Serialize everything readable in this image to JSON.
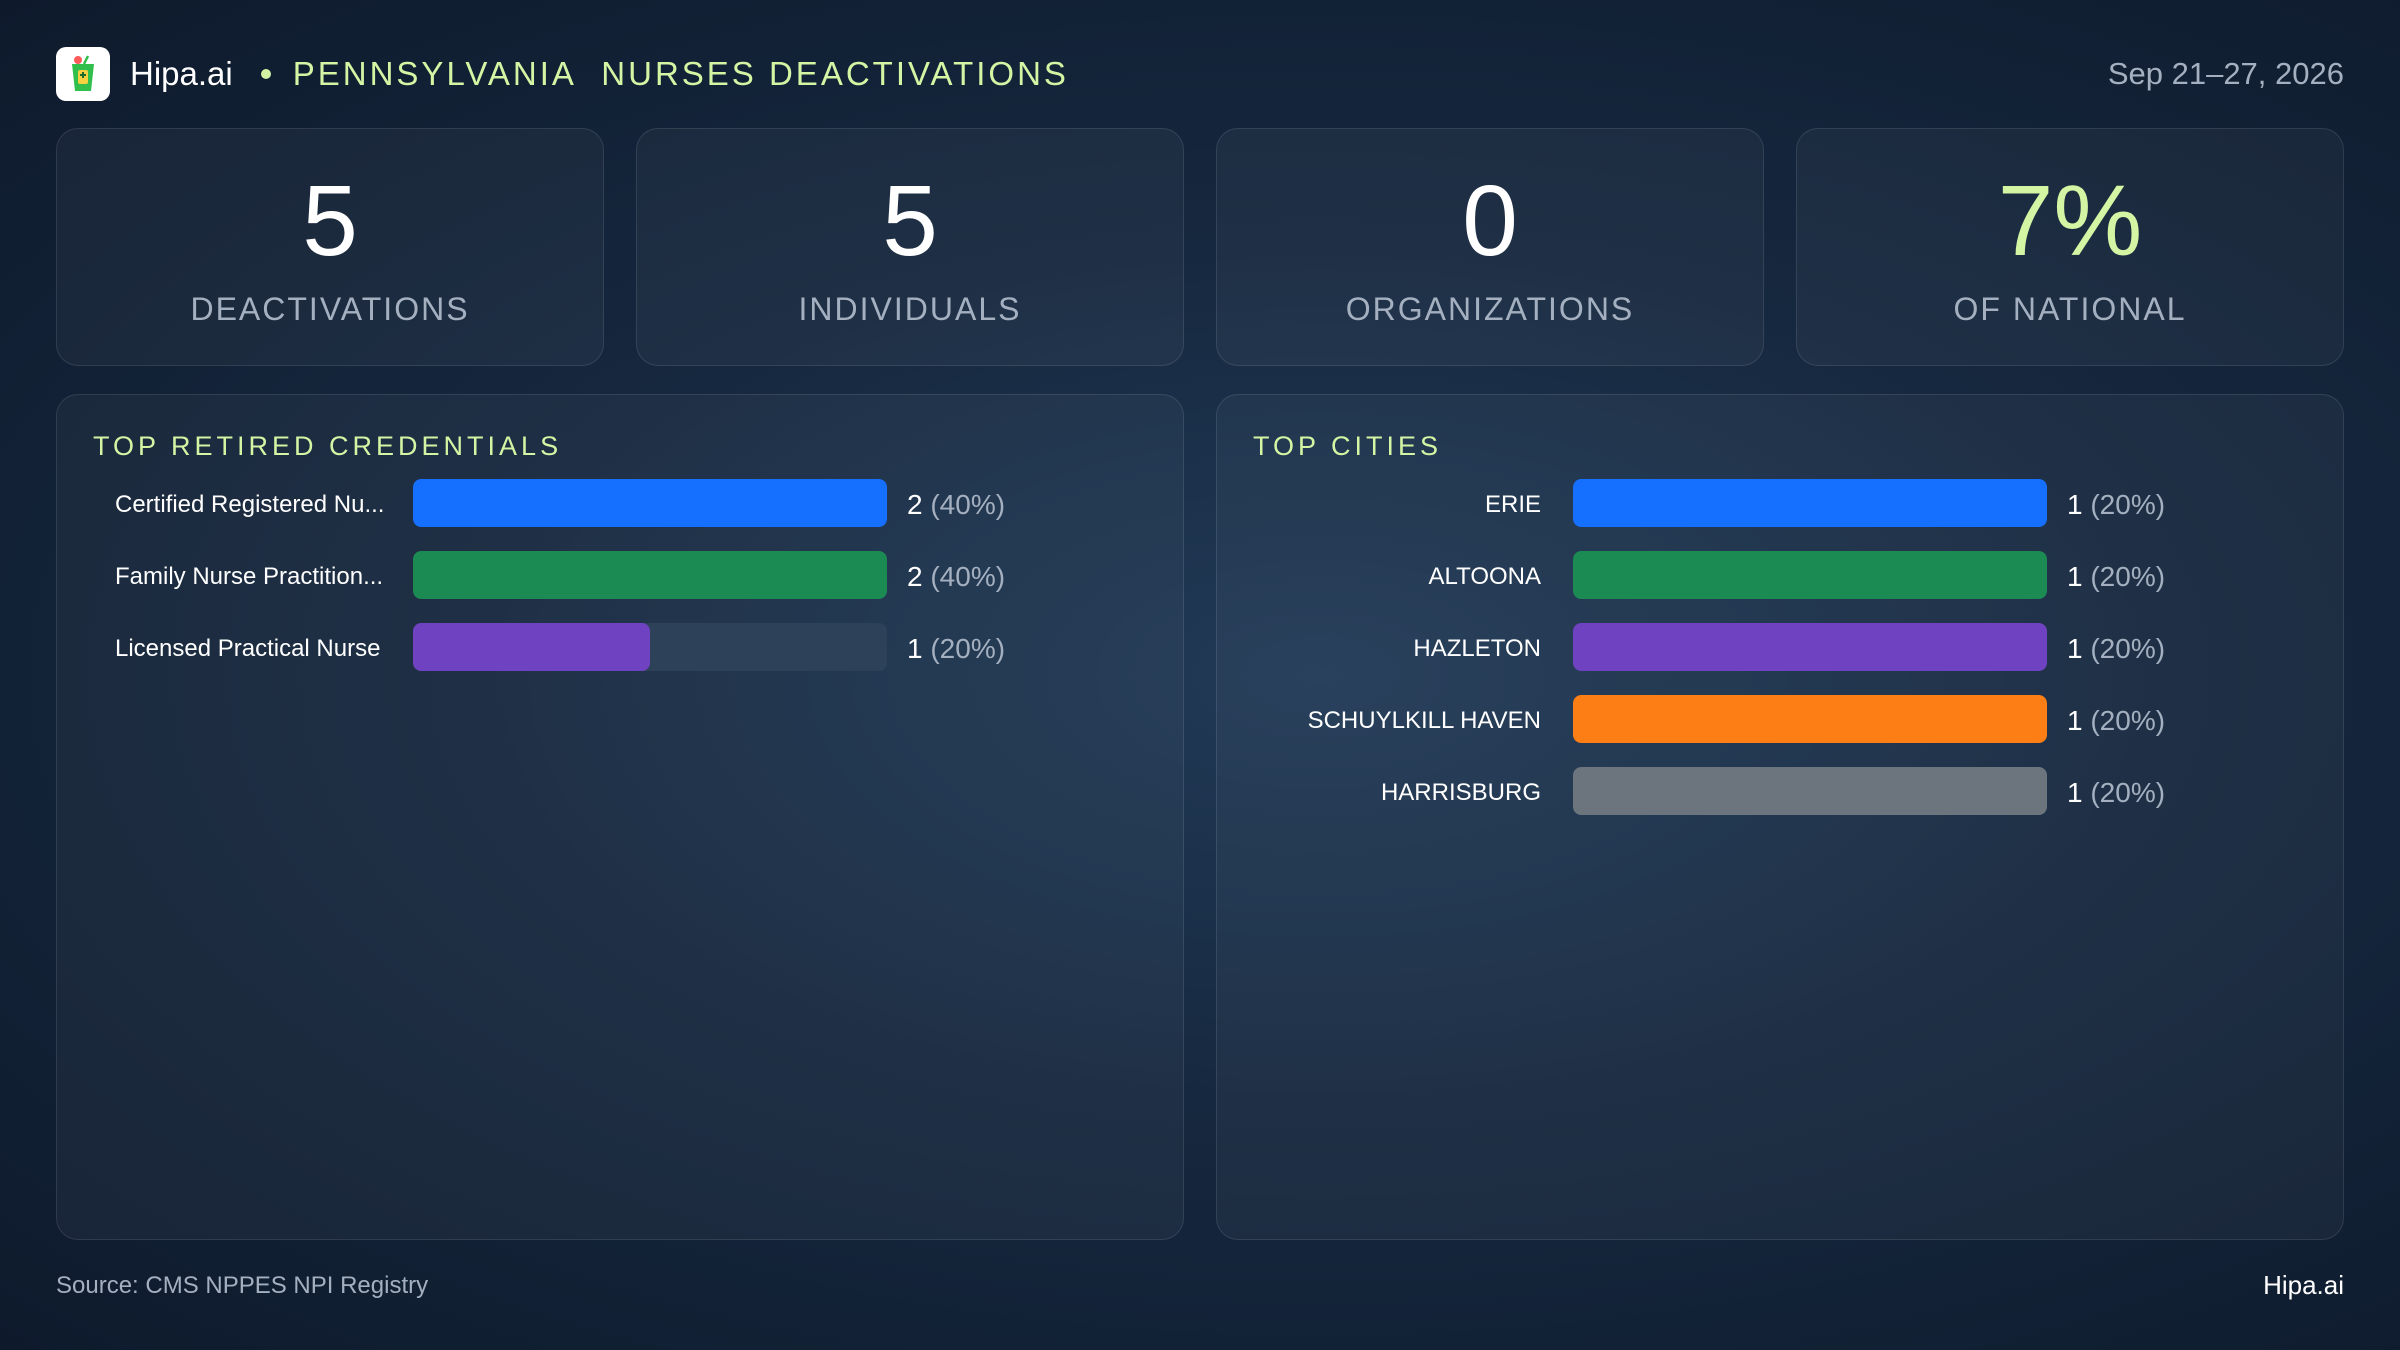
{
  "header": {
    "brand": "Hipa.ai",
    "state": "PENNSYLVANIA",
    "subtitle": "NURSES DEACTIVATIONS",
    "date_range": "Sep 21–27, 2026"
  },
  "kpis": [
    {
      "value": "5",
      "label": "DEACTIVATIONS"
    },
    {
      "value": "5",
      "label": "INDIVIDUALS"
    },
    {
      "value": "0",
      "label": "ORGANIZATIONS"
    },
    {
      "value": "7%",
      "label": "OF NATIONAL"
    }
  ],
  "colors": {
    "accent": "#d4f5a4",
    "blue": "#1670ff",
    "green": "#1b8a53",
    "purple": "#6f42c1",
    "orange": "#fd7e14",
    "gray": "#6c757d",
    "track": "#2d4259"
  },
  "chart_data": [
    {
      "type": "bar",
      "title": "TOP RETIRED CREDENTIALS",
      "orientation": "horizontal",
      "categories": [
        "Certified Registered Nu...",
        "Family Nurse Practition...",
        "Licensed Practical Nurse"
      ],
      "values": [
        2,
        2,
        1
      ],
      "percent_labels": [
        "(40%)",
        "(40%)",
        "(20%)"
      ],
      "colors": [
        "#1670ff",
        "#1b8a53",
        "#6f42c1"
      ],
      "xlim": [
        0,
        2
      ]
    },
    {
      "type": "bar",
      "title": "TOP CITIES",
      "orientation": "horizontal",
      "categories": [
        "ERIE",
        "ALTOONA",
        "HAZLETON",
        "SCHUYLKILL HAVEN",
        "HARRISBURG"
      ],
      "values": [
        1,
        1,
        1,
        1,
        1
      ],
      "percent_labels": [
        "(20%)",
        "(20%)",
        "(20%)",
        "(20%)",
        "(20%)"
      ],
      "colors": [
        "#1670ff",
        "#1b8a53",
        "#6f42c1",
        "#fd7e14",
        "#6c757d"
      ],
      "xlim": [
        0,
        1
      ]
    }
  ],
  "footer": {
    "source": "Source: CMS NPPES NPI Registry",
    "brand": "Hipa.ai"
  }
}
